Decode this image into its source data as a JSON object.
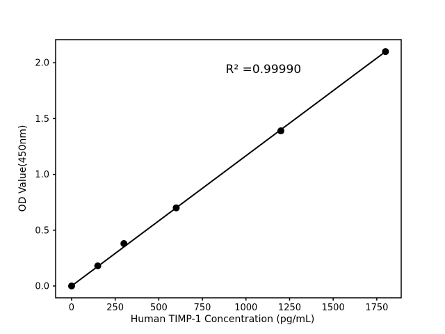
{
  "chart_data": {
    "type": "scatter",
    "title": "",
    "xlabel": "Human TIMP-1 Concentration (pg/mL)",
    "ylabel": "OD Value(450nm)",
    "x": [
      0,
      150,
      300,
      600,
      1200,
      1800
    ],
    "y": [
      0.0,
      0.18,
      0.38,
      0.7,
      1.39,
      2.1
    ],
    "fit_line": {
      "x": [
        0,
        1800
      ],
      "y": [
        0.0,
        2.1
      ]
    },
    "annotation": {
      "text": "R² =0.99990",
      "x": 1100,
      "y": 1.94
    },
    "xticks": {
      "values": [
        0,
        250,
        500,
        750,
        1000,
        1250,
        1500,
        1750
      ],
      "labels": [
        "0",
        "250",
        "500",
        "750",
        "1000",
        "1250",
        "1500",
        "1750"
      ]
    },
    "yticks": {
      "values": [
        0.0,
        0.5,
        1.0,
        1.5,
        2.0
      ],
      "labels": [
        "0.0",
        "0.5",
        "1.0",
        "1.5",
        "2.0"
      ]
    },
    "xlim": [
      -91.5,
      1890
    ],
    "ylim": [
      -0.106,
      2.207
    ],
    "legend": null,
    "grid": false,
    "marker_color": "#000000",
    "line_color": "#000000",
    "background_color": "#ffffff"
  }
}
